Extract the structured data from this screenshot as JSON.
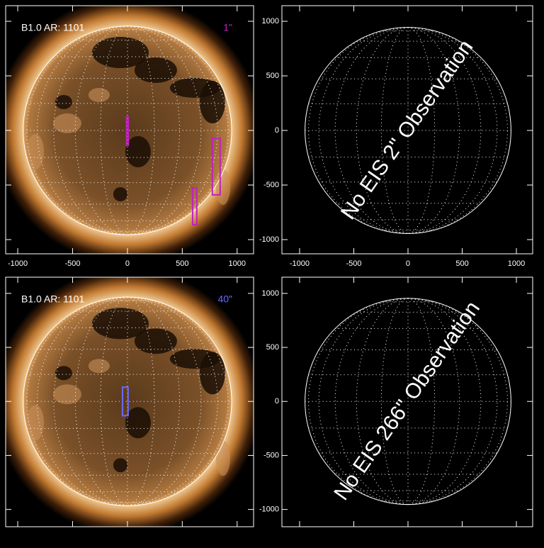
{
  "chart_data": [
    {
      "type": "sun-map",
      "label": "B1.0 AR: 1101",
      "slit_label": "1\"",
      "box_color": "#c020c0",
      "xlim": [
        -1110,
        1150
      ],
      "ylim": [
        -1130,
        1143
      ],
      "xticks": [
        -1000,
        -500,
        0,
        500,
        1000
      ],
      "yticks": [
        -1000,
        -500,
        0,
        500,
        1000
      ],
      "disk_radius": 950,
      "boxes": [
        {
          "x0": -8,
          "x1": 8,
          "y0": -136,
          "y1": 123
        },
        {
          "x0": 774,
          "x1": 845,
          "y0": -590,
          "y1": -71
        },
        {
          "x0": 594,
          "x1": 632,
          "y0": -864,
          "y1": -526
        }
      ]
    },
    {
      "type": "empty-map",
      "message": "No EIS 2\" Observation",
      "xlim": [
        -1163,
        1150
      ],
      "ylim": [
        -1130,
        1143
      ],
      "xticks": [
        -1000,
        -500,
        0,
        500,
        1000
      ],
      "yticks": [
        -1000,
        -500,
        0,
        500,
        1000
      ],
      "disk_radius": 950
    },
    {
      "type": "sun-map",
      "label": "B1.0 AR: 1101",
      "slit_label": "40\"",
      "box_color": "#6a6aff",
      "xlim": [
        -1110,
        1150
      ],
      "ylim": [
        -1160,
        1150
      ],
      "xticks": [
        -1000,
        -500,
        0,
        500,
        1000
      ],
      "yticks": [
        -1000,
        -500,
        0,
        500,
        1000
      ],
      "disk_radius": 950,
      "boxes": [
        {
          "x0": -45,
          "x1": 6,
          "y0": -132,
          "y1": 132
        }
      ]
    },
    {
      "type": "empty-map",
      "message": "No EIS 266\" Observation",
      "xlim": [
        -1163,
        1150
      ],
      "ylim": [
        -1160,
        1150
      ],
      "xticks": [
        -1000,
        -500,
        0,
        500,
        1000
      ],
      "yticks": [
        -1000,
        -500,
        0,
        500,
        1000
      ],
      "disk_radius": 950
    }
  ]
}
